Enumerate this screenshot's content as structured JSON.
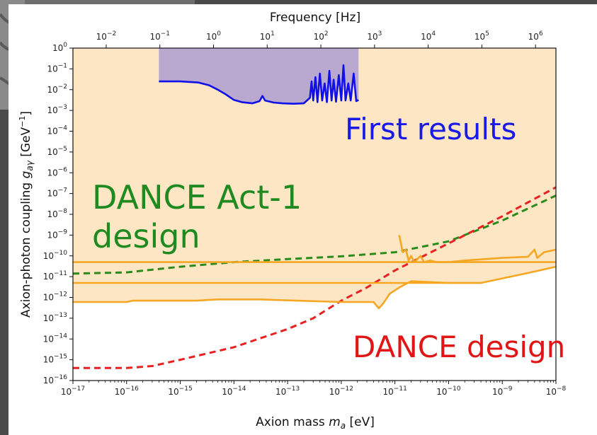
{
  "chart_data": {
    "type": "line",
    "xlabel": "Axion mass m_a [eV]",
    "xlabel_main": "Axion mass ",
    "xlabel_var": "m",
    "xlabel_sub": "a",
    "xlabel_unit": " [eV]",
    "top_xlabel": "Frequency [Hz]",
    "ylabel": "Axion-photon coupling g_aγ [GeV^-1]",
    "ylabel_main": "Axion-photon coupling ",
    "ylabel_var": "g",
    "ylabel_sub": "aγ",
    "ylabel_unit_open": " [GeV",
    "ylabel_unit_exp": "−1",
    "ylabel_unit_close": "]",
    "xscale": "log",
    "yscale": "log",
    "xlim": [
      1e-17,
      1e-08
    ],
    "ylim": [
      1e-16,
      1
    ],
    "top_xlim": [
      0.0024,
      2400000
    ],
    "x_ticks": [
      {
        "value": 1e-17,
        "base": "10",
        "exp": "−17"
      },
      {
        "value": 1e-16,
        "base": "10",
        "exp": "−16"
      },
      {
        "value": 1e-15,
        "base": "10",
        "exp": "−15"
      },
      {
        "value": 1e-14,
        "base": "10",
        "exp": "−14"
      },
      {
        "value": 1e-13,
        "base": "10",
        "exp": "−13"
      },
      {
        "value": 1e-12,
        "base": "10",
        "exp": "−12"
      },
      {
        "value": 1e-11,
        "base": "10",
        "exp": "−11"
      },
      {
        "value": 1e-10,
        "base": "10",
        "exp": "−10"
      },
      {
        "value": 1e-09,
        "base": "10",
        "exp": "−9"
      },
      {
        "value": 1e-08,
        "base": "10",
        "exp": "−8"
      }
    ],
    "top_x_ticks": [
      {
        "value": 0.01,
        "base": "10",
        "exp": "−2"
      },
      {
        "value": 0.1,
        "base": "10",
        "exp": "−1"
      },
      {
        "value": 1,
        "base": "10",
        "exp": "0"
      },
      {
        "value": 10,
        "base": "10",
        "exp": "1"
      },
      {
        "value": 100,
        "base": "10",
        "exp": "2"
      },
      {
        "value": 1000,
        "base": "10",
        "exp": "3"
      },
      {
        "value": 10000,
        "base": "10",
        "exp": "4"
      },
      {
        "value": 100000,
        "base": "10",
        "exp": "5"
      },
      {
        "value": 1000000,
        "base": "10",
        "exp": "6"
      }
    ],
    "y_ticks": [
      {
        "value": 1,
        "base": "10",
        "exp": "0"
      },
      {
        "value": 0.1,
        "base": "10",
        "exp": "−1"
      },
      {
        "value": 0.01,
        "base": "10",
        "exp": "−2"
      },
      {
        "value": 0.001,
        "base": "10",
        "exp": "−3"
      },
      {
        "value": 0.0001,
        "base": "10",
        "exp": "−4"
      },
      {
        "value": 1e-05,
        "base": "10",
        "exp": "−5"
      },
      {
        "value": 1e-06,
        "base": "10",
        "exp": "−6"
      },
      {
        "value": 1e-07,
        "base": "10",
        "exp": "−7"
      },
      {
        "value": 1e-08,
        "base": "10",
        "exp": "−8"
      },
      {
        "value": 1e-09,
        "base": "10",
        "exp": "−9"
      },
      {
        "value": 1e-10,
        "base": "10",
        "exp": "−10"
      },
      {
        "value": 1e-11,
        "base": "10",
        "exp": "−11"
      },
      {
        "value": 1e-12,
        "base": "10",
        "exp": "−12"
      },
      {
        "value": 1e-13,
        "base": "10",
        "exp": "−13"
      },
      {
        "value": 1e-14,
        "base": "10",
        "exp": "−14"
      },
      {
        "value": 1e-15,
        "base": "10",
        "exp": "−15"
      },
      {
        "value": 1e-16,
        "base": "10",
        "exp": "−16"
      }
    ],
    "regions": [
      {
        "kind": "excluded",
        "color": "#fde6c4",
        "x_range": [
          1e-17,
          1e-08
        ],
        "y_lower_curve": "orange_bottom",
        "y_upper": 1
      },
      {
        "kind": "first_results_window",
        "color": "#b9a9d1",
        "x_range": [
          4e-16,
          2.1e-12
        ],
        "y_lower_curve": "first_results",
        "y_upper": 1
      }
    ],
    "series": [
      {
        "key": "first_results",
        "color": "#1010e8",
        "style": "solid",
        "points": [
          [
            4e-16,
            0.025
          ],
          [
            1e-15,
            0.025
          ],
          [
            2.2e-15,
            0.022
          ],
          [
            3.5e-15,
            0.016
          ],
          [
            5e-15,
            0.01
          ],
          [
            7e-15,
            0.006
          ],
          [
            1e-14,
            0.0032
          ],
          [
            1.4e-14,
            0.0025
          ],
          [
            2.2e-14,
            0.0022
          ],
          [
            3e-14,
            0.0028
          ],
          [
            3.4e-14,
            0.005
          ],
          [
            3.8e-14,
            0.003
          ],
          [
            5.5e-14,
            0.0024
          ],
          [
            8e-14,
            0.0022
          ],
          [
            1.3e-13,
            0.0021
          ],
          [
            2e-13,
            0.0022
          ],
          [
            2.6e-13,
            0.004
          ],
          [
            2.8e-13,
            0.025
          ],
          [
            3e-13,
            0.003
          ],
          [
            3.3e-13,
            0.04
          ],
          [
            3.6e-13,
            0.0025
          ],
          [
            4e-13,
            0.06
          ],
          [
            4.4e-13,
            0.003
          ],
          [
            4.9e-13,
            0.02
          ],
          [
            5.4e-13,
            0.0025
          ],
          [
            6e-13,
            0.08
          ],
          [
            6.6e-13,
            0.003
          ],
          [
            7.2e-13,
            0.03
          ],
          [
            8e-13,
            0.0026
          ],
          [
            9e-13,
            0.05
          ],
          [
            1e-12,
            0.003
          ],
          [
            1.1e-12,
            0.15
          ],
          [
            1.2e-12,
            0.003
          ],
          [
            1.35e-12,
            0.02
          ],
          [
            1.5e-12,
            0.003
          ],
          [
            1.7e-12,
            0.06
          ],
          [
            1.9e-12,
            0.0028
          ],
          [
            2.1e-12,
            0.0032
          ]
        ]
      },
      {
        "key": "dance_act1",
        "color": "#2a8a1a",
        "style": "dashed",
        "points": [
          [
            1e-17,
            1.4e-11
          ],
          [
            1e-16,
            1.6e-11
          ],
          [
            1e-15,
            3e-11
          ],
          [
            1e-14,
            5e-11
          ],
          [
            1e-13,
            7e-11
          ],
          [
            1e-12,
            9.5e-11
          ],
          [
            1e-11,
            1.5e-10
          ],
          [
            1e-10,
            5e-10
          ],
          [
            1e-09,
            5e-09
          ],
          [
            1e-08,
            8e-08
          ]
        ]
      },
      {
        "key": "dance",
        "color": "#e82020",
        "style": "dashed",
        "points": [
          [
            1e-17,
            4e-16
          ],
          [
            1e-16,
            4e-16
          ],
          [
            3e-16,
            5e-16
          ],
          [
            1e-15,
            1e-15
          ],
          [
            1e-14,
            4e-15
          ],
          [
            1e-13,
            3e-14
          ],
          [
            3e-13,
            1e-13
          ],
          [
            1e-12,
            7e-13
          ],
          [
            3e-12,
            3e-12
          ],
          [
            1e-11,
            2e-11
          ],
          [
            1e-10,
            4e-10
          ],
          [
            1e-09,
            8e-09
          ],
          [
            1e-08,
            2e-07
          ]
        ]
      },
      {
        "key": "orange_top",
        "color": "#f5a623",
        "style": "solid",
        "points": [
          [
            1e-17,
            5e-11
          ],
          [
            1e-08,
            5e-11
          ]
        ]
      },
      {
        "key": "orange_mid",
        "color": "#f5a623",
        "style": "solid",
        "points": [
          [
            1e-17,
            5e-12
          ],
          [
            4e-10,
            5e-12
          ],
          [
            3e-09,
            1.5e-11
          ],
          [
            1e-08,
            3e-11
          ]
        ]
      },
      {
        "key": "orange_bottom",
        "color": "#f5a623",
        "style": "solid",
        "points": [
          [
            1e-17,
            6e-13
          ],
          [
            1e-16,
            6e-13
          ],
          [
            1.3e-16,
            7e-13
          ],
          [
            2e-15,
            7e-13
          ],
          [
            5e-15,
            8e-13
          ],
          [
            3e-14,
            8e-13
          ],
          [
            1e-12,
            6e-13
          ],
          [
            4e-12,
            6e-13
          ],
          [
            5e-12,
            3e-13
          ],
          [
            6e-12,
            5e-13
          ],
          [
            8e-12,
            1.5e-12
          ],
          [
            1.2e-11,
            3e-12
          ],
          [
            2e-11,
            6e-12
          ],
          [
            1e-10,
            5e-12
          ],
          [
            4e-10,
            5e-12
          ]
        ]
      },
      {
        "key": "orange_wiggle",
        "color": "#f5a623",
        "style": "solid",
        "points": [
          [
            1.2e-11,
            1e-09
          ],
          [
            1.4e-11,
            1.5e-10
          ],
          [
            1.6e-11,
            2e-10
          ],
          [
            1.8e-11,
            6e-11
          ],
          [
            2e-11,
            1e-10
          ],
          [
            2.3e-11,
            5e-11
          ],
          [
            3e-11,
            1e-10
          ],
          [
            3.5e-11,
            5e-11
          ],
          [
            4.5e-11,
            6e-11
          ],
          [
            6e-11,
            5e-11
          ],
          [
            1e-10,
            5e-11
          ],
          [
            2e-10,
            6e-11
          ],
          [
            1e-09,
            8e-11
          ],
          [
            3e-09,
            9e-11
          ],
          [
            4e-09,
            2e-10
          ],
          [
            4.5e-09,
            8e-11
          ],
          [
            6e-09,
            1.5e-10
          ],
          [
            1e-08,
            2e-10
          ]
        ]
      }
    ],
    "annotations": [
      {
        "key": "first_results_label",
        "text": "First results",
        "color": "#1a1ae6"
      },
      {
        "key": "act1_label_line1",
        "text": "DANCE Act-1",
        "color": "#1f8a1f"
      },
      {
        "key": "act1_label_line2",
        "text": "design",
        "color": "#1f8a1f"
      },
      {
        "key": "dance_label",
        "text": "DANCE design",
        "color": "#e01515"
      }
    ]
  }
}
